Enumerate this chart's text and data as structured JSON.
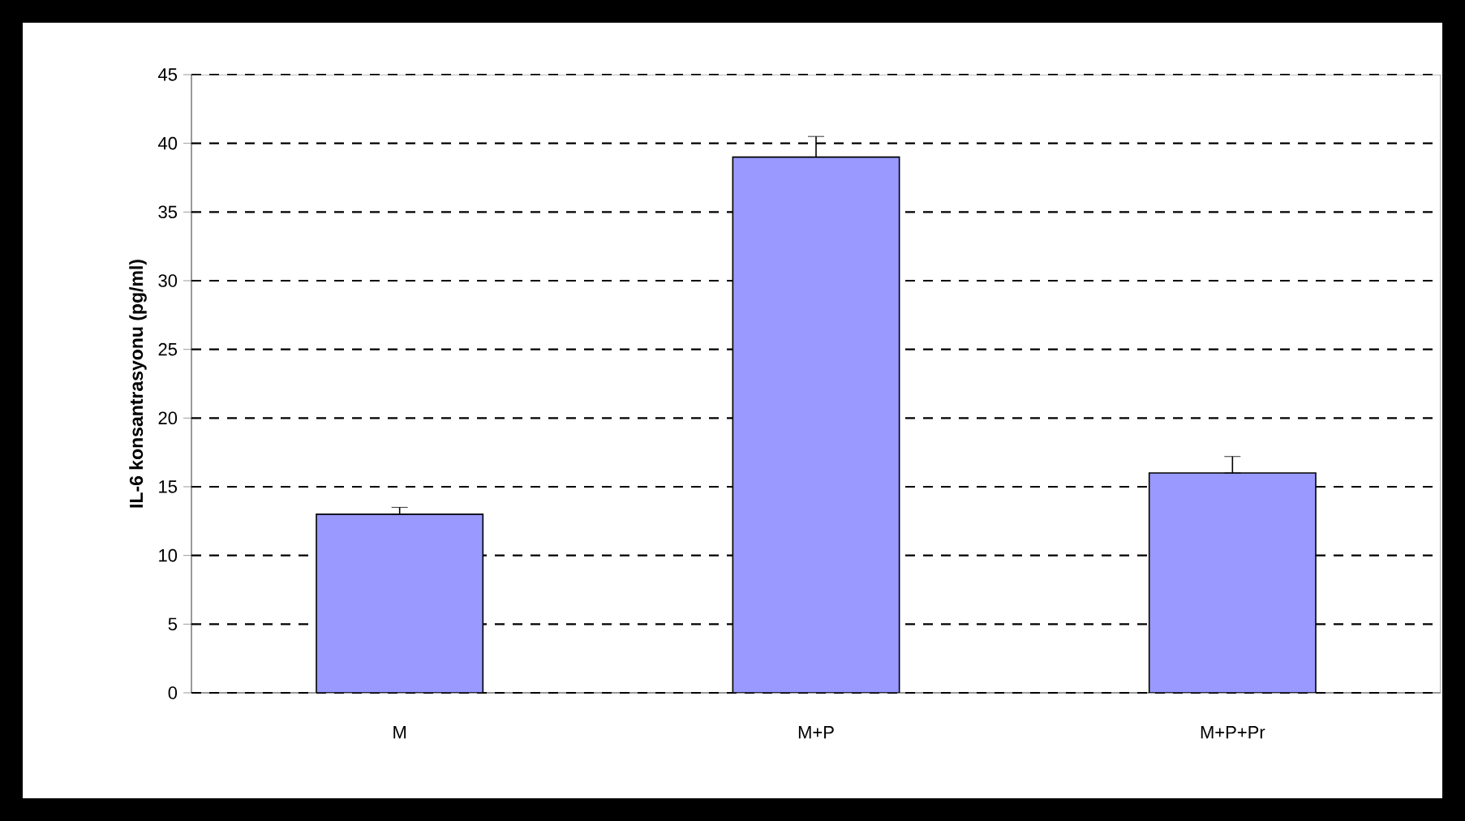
{
  "chart_data": {
    "type": "bar",
    "ylabel": "IL-6 konsantrasyonu (pg/ml)",
    "categories": [
      "M",
      "M+P",
      "M+P+Pr"
    ],
    "values": [
      13,
      39,
      16
    ],
    "errors": [
      [
        13,
        13.5
      ],
      [
        39,
        40.5
      ],
      [
        16,
        17.2
      ]
    ],
    "color": "#9999ff",
    "ylim": [
      0,
      45
    ],
    "yticks": [
      0,
      5,
      10,
      15,
      20,
      25,
      30,
      35,
      40,
      45
    ],
    "grid": "y"
  }
}
